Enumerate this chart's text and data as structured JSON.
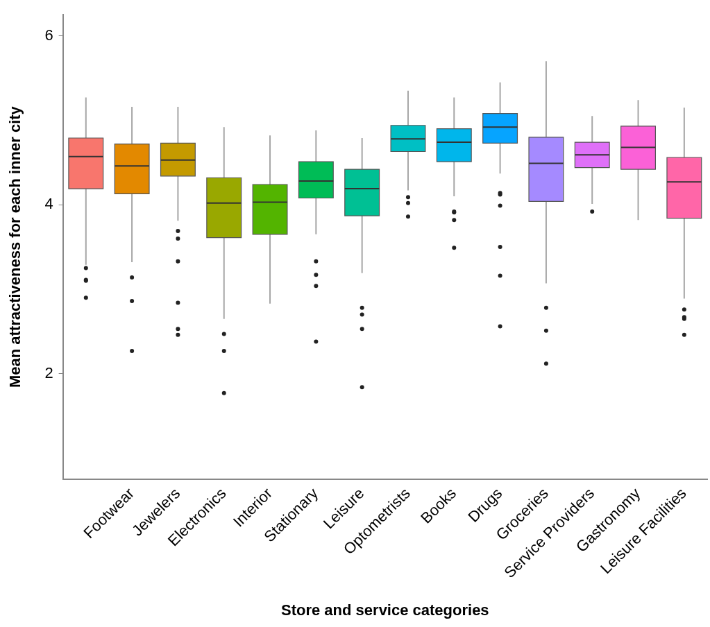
{
  "chart_data": {
    "type": "box",
    "xlabel": "Store and service categories",
    "ylabel": "Mean attractiveness for each inner city",
    "categories": [
      null,
      "Footwear",
      "Jewelers",
      "Electronics",
      "Interior",
      "Stationary",
      "Leisure",
      "Optometrists",
      "Books",
      "Drugs",
      "Groceries",
      "Service Providers",
      "Gastronomy",
      "Leisure Facilities"
    ],
    "colors": [
      "#f8766d",
      "#e38900",
      "#c49a00",
      "#99a800",
      "#53b400",
      "#00bc56",
      "#00c094",
      "#00bfc4",
      "#00b6eb",
      "#06a4ff",
      "#a58aff",
      "#df70f8",
      "#fb61d7",
      "#ff66a8"
    ],
    "boxes": [
      {
        "low": 3.29,
        "q1": 4.19,
        "median": 4.57,
        "q3": 4.79,
        "high": 5.27,
        "outliers": [
          3.25,
          3.11,
          3.1,
          2.9
        ]
      },
      {
        "low": 3.32,
        "q1": 4.13,
        "median": 4.46,
        "q3": 4.72,
        "high": 5.16,
        "outliers": [
          3.14,
          2.86,
          2.27
        ]
      },
      {
        "low": 3.81,
        "q1": 4.34,
        "median": 4.53,
        "q3": 4.73,
        "high": 5.16,
        "outliers": [
          3.69,
          3.6,
          3.33,
          2.84,
          2.53,
          2.46
        ]
      },
      {
        "low": 2.65,
        "q1": 3.61,
        "median": 4.02,
        "q3": 4.32,
        "high": 4.92,
        "outliers": [
          2.47,
          2.27,
          1.77
        ]
      },
      {
        "low": 2.83,
        "q1": 3.65,
        "median": 4.03,
        "q3": 4.24,
        "high": 4.82
      },
      {
        "low": 3.65,
        "q1": 4.08,
        "median": 4.28,
        "q3": 4.51,
        "high": 4.88,
        "outliers": [
          3.33,
          3.17,
          3.04,
          2.38
        ]
      },
      {
        "low": 3.19,
        "q1": 3.87,
        "median": 4.19,
        "q3": 4.42,
        "high": 4.79,
        "outliers": [
          2.78,
          2.7,
          2.53,
          1.84
        ]
      },
      {
        "low": 4.17,
        "q1": 4.63,
        "median": 4.78,
        "q3": 4.94,
        "high": 5.35,
        "outliers": [
          4.09,
          4.02,
          3.86
        ]
      },
      {
        "low": 4.1,
        "q1": 4.51,
        "median": 4.74,
        "q3": 4.9,
        "high": 5.27,
        "outliers": [
          3.92,
          3.91,
          3.82,
          3.49
        ]
      },
      {
        "low": 4.37,
        "q1": 4.73,
        "median": 4.92,
        "q3": 5.08,
        "high": 5.45,
        "outliers": [
          4.14,
          4.12,
          3.99,
          3.5,
          3.16,
          2.56
        ]
      },
      {
        "low": 3.07,
        "q1": 4.04,
        "median": 4.49,
        "q3": 4.8,
        "high": 5.7,
        "outliers": [
          2.78,
          2.51,
          2.12
        ]
      },
      {
        "low": 4.01,
        "q1": 4.44,
        "median": 4.59,
        "q3": 4.74,
        "high": 5.05,
        "outliers": [
          3.92
        ]
      },
      {
        "low": 3.82,
        "q1": 4.42,
        "median": 4.68,
        "q3": 4.93,
        "high": 5.24
      },
      {
        "low": 2.89,
        "q1": 3.84,
        "median": 4.27,
        "q3": 4.56,
        "high": 5.15,
        "outliers": [
          2.76,
          2.67,
          2.65,
          2.46
        ]
      }
    ],
    "ylim": [
      0.75,
      6.25
    ],
    "yticks": [
      2,
      4,
      6
    ]
  }
}
